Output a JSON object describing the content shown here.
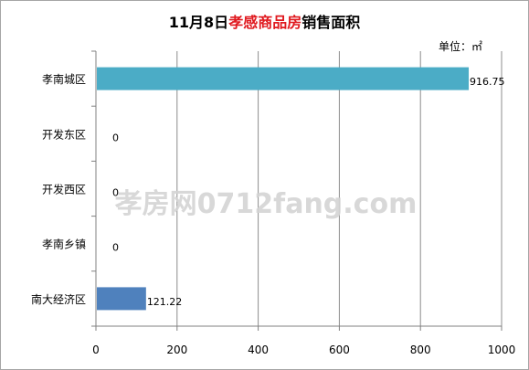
{
  "title": {
    "part1": "11月8日",
    "part2": "孝感商品房",
    "part3": "销售面积"
  },
  "unit_label": "单位：㎡",
  "watermark": "孝房网0712fang.com",
  "colors": {
    "highlight": "#e0191f",
    "bar_first": "#4bacc6",
    "bar_default": "#4f81bd",
    "grid": "#8c8c8c"
  },
  "chart_data": {
    "type": "bar",
    "orientation": "horizontal",
    "categories": [
      "孝南城区",
      "开发东区",
      "开发西区",
      "孝南乡镇",
      "南大经济区"
    ],
    "values": [
      916.75,
      0,
      0,
      0,
      121.22
    ],
    "value_labels": [
      "916.75",
      "0",
      "0",
      "0",
      "121.22"
    ],
    "x_ticks": [
      "0",
      "200",
      "400",
      "600",
      "800",
      "1000"
    ],
    "xlim": [
      0,
      1000
    ],
    "grid": true
  }
}
